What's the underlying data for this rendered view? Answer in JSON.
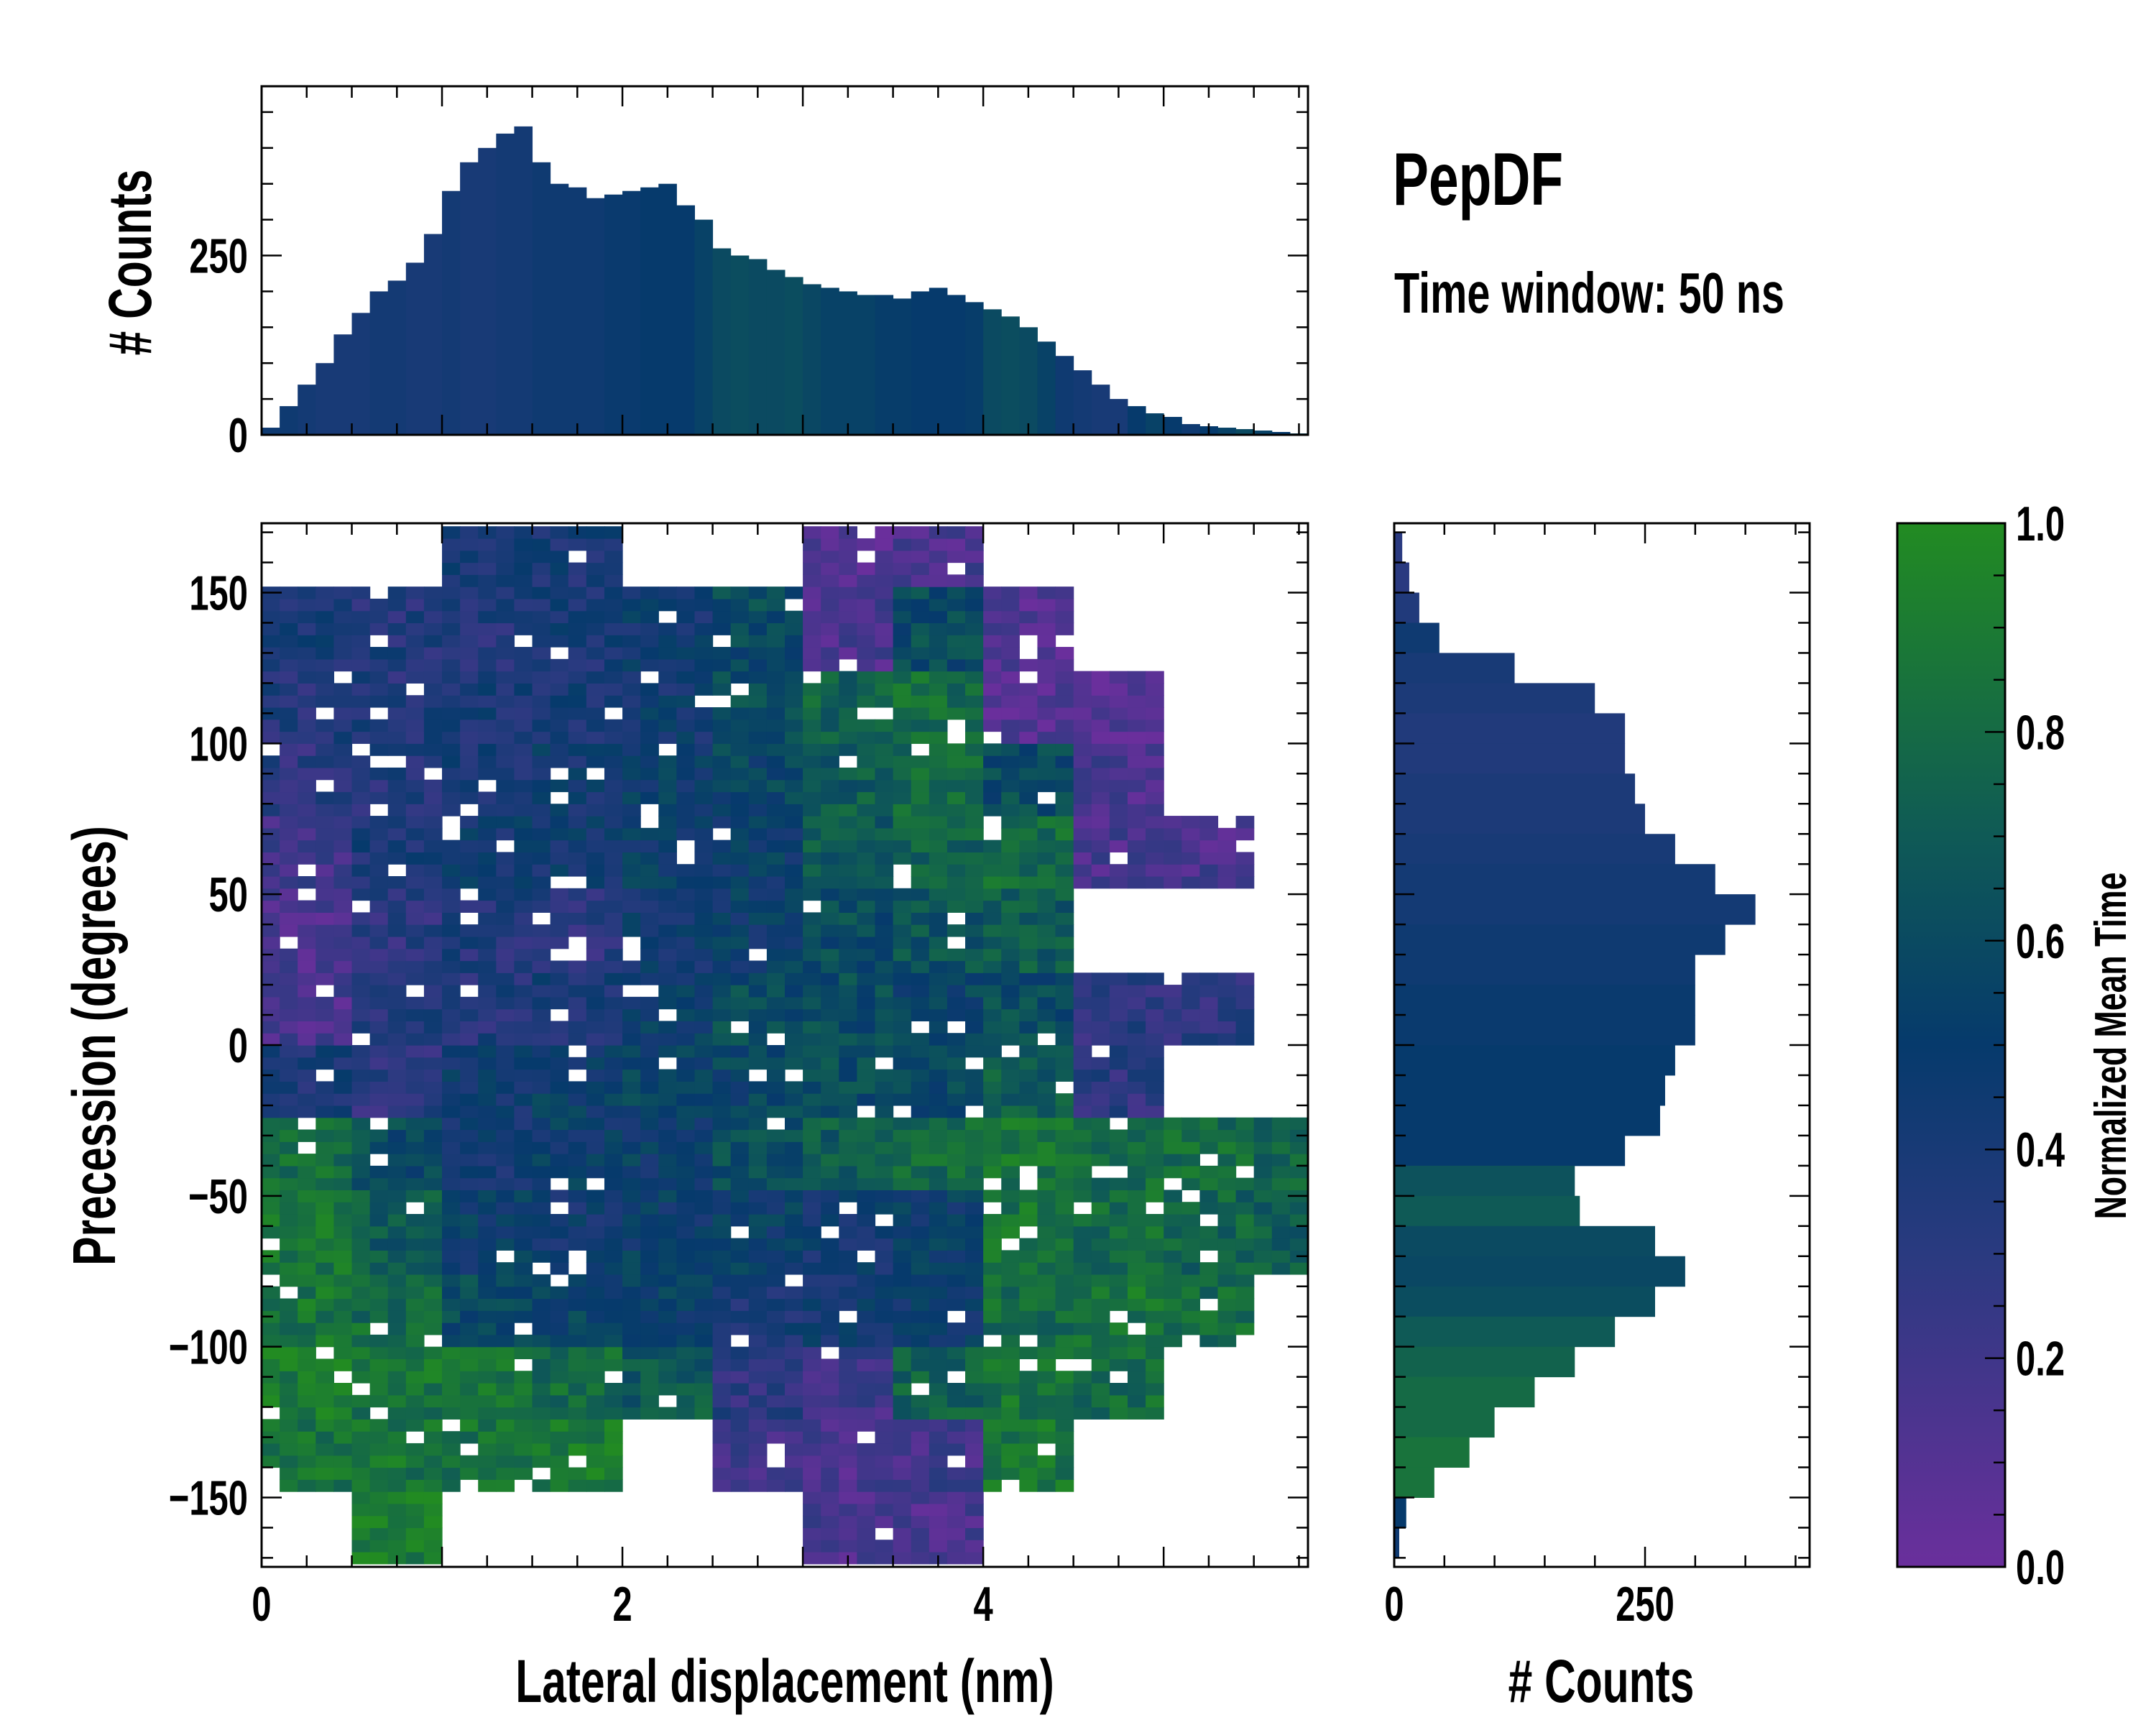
{
  "title": "PepDF",
  "subtitle": "Time window: 50 ns",
  "colormap": {
    "label": "Normalized Mean Time",
    "stops": [
      [
        0.0,
        "#6a2f9c"
      ],
      [
        0.3,
        "#2a3a80"
      ],
      [
        0.5,
        "#063a6c"
      ],
      [
        0.7,
        "#0f5a56"
      ],
      [
        1.0,
        "#228b22"
      ]
    ],
    "range": [
      0,
      1
    ],
    "ticks": [
      0.0,
      0.2,
      0.4,
      0.6,
      0.8,
      1.0
    ],
    "tick_labels": [
      "0.0",
      "0.2",
      "0.4",
      "0.6",
      "0.8",
      "1.0"
    ]
  },
  "chart_data": [
    {
      "id": "top-histogram",
      "type": "bar",
      "ylabel": "# Counts",
      "xlim": [
        0,
        5.8
      ],
      "ylim": [
        0,
        486
      ],
      "yticks": [
        0,
        250
      ],
      "ytick_labels": [
        "0",
        "250"
      ],
      "bin_width": 0.1,
      "x_start": 0,
      "values": [
        10,
        40,
        70,
        100,
        140,
        170,
        200,
        215,
        240,
        280,
        340,
        380,
        400,
        420,
        430,
        380,
        350,
        345,
        330,
        335,
        340,
        345,
        350,
        320,
        300,
        260,
        250,
        245,
        230,
        220,
        210,
        205,
        200,
        195,
        195,
        190,
        200,
        205,
        195,
        185,
        175,
        165,
        150,
        130,
        110,
        90,
        70,
        50,
        40,
        30,
        25,
        15,
        12,
        10,
        8,
        6,
        4,
        2
      ],
      "mean_time": [
        0.45,
        0.45,
        0.42,
        0.4,
        0.4,
        0.4,
        0.42,
        0.42,
        0.4,
        0.4,
        0.42,
        0.4,
        0.4,
        0.42,
        0.42,
        0.45,
        0.45,
        0.45,
        0.45,
        0.48,
        0.48,
        0.5,
        0.5,
        0.5,
        0.55,
        0.6,
        0.62,
        0.6,
        0.6,
        0.62,
        0.58,
        0.55,
        0.55,
        0.55,
        0.52,
        0.52,
        0.5,
        0.5,
        0.5,
        0.52,
        0.6,
        0.62,
        0.6,
        0.55,
        0.45,
        0.42,
        0.4,
        0.4,
        0.5,
        0.55,
        0.5,
        0.45,
        0.5,
        0.55,
        0.6,
        0.55,
        0.5,
        0.6
      ]
    },
    {
      "id": "joint-heatmap",
      "type": "heatmap",
      "xlabel": "Lateral displacement (nm)",
      "ylabel": "Precession (degrees)",
      "xlim": [
        0,
        5.8
      ],
      "ylim": [
        -173,
        173
      ],
      "xticks": [
        0,
        2,
        4
      ],
      "xtick_labels": [
        "0",
        "2",
        "4"
      ],
      "yticks": [
        -150,
        -100,
        -50,
        0,
        50,
        100,
        150
      ],
      "ytick_labels": [
        "−150",
        "−100",
        "−50",
        "0",
        "50",
        "100",
        "150"
      ],
      "grid_x_edges_step": 0.5,
      "grid_y_top": 175,
      "grid_y_step": 25,
      "mean_time_grid": [
        [
          null,
          null,
          0.4,
          0.4,
          null,
          null,
          0.1,
          0.15,
          null,
          null,
          null,
          null
        ],
        [
          0.4,
          0.35,
          0.35,
          0.4,
          0.45,
          0.6,
          0.15,
          0.6,
          0.1,
          null,
          null,
          null
        ],
        [
          0.35,
          0.35,
          0.4,
          0.4,
          0.45,
          0.6,
          0.75,
          0.8,
          0.1,
          0.1,
          null,
          null
        ],
        [
          0.3,
          0.35,
          0.4,
          0.45,
          0.5,
          0.55,
          0.7,
          0.8,
          0.6,
          0.15,
          null,
          null
        ],
        [
          0.2,
          0.4,
          0.45,
          0.45,
          0.5,
          0.5,
          0.7,
          0.75,
          0.8,
          0.15,
          0.15,
          null
        ],
        [
          0.15,
          0.3,
          0.35,
          0.3,
          0.45,
          0.5,
          0.6,
          0.65,
          0.7,
          null,
          null,
          null
        ],
        [
          0.15,
          0.35,
          0.35,
          0.4,
          0.5,
          0.6,
          0.6,
          0.55,
          0.6,
          0.3,
          0.3,
          null
        ],
        [
          0.4,
          0.3,
          0.45,
          0.5,
          0.55,
          0.55,
          0.6,
          0.6,
          0.7,
          0.3,
          null,
          null
        ],
        [
          0.8,
          0.6,
          0.45,
          0.5,
          0.5,
          0.6,
          0.7,
          0.8,
          0.85,
          0.8,
          0.8,
          0.75
        ],
        [
          0.85,
          0.7,
          0.5,
          0.45,
          0.5,
          0.5,
          0.45,
          0.5,
          0.85,
          0.8,
          0.75,
          0.7
        ],
        [
          0.85,
          0.8,
          0.6,
          0.55,
          0.5,
          0.4,
          0.45,
          0.5,
          0.8,
          0.85,
          0.8,
          null
        ],
        [
          0.9,
          0.85,
          0.85,
          0.8,
          0.7,
          0.3,
          0.2,
          0.75,
          0.85,
          0.8,
          null,
          null
        ],
        [
          0.85,
          0.85,
          0.85,
          0.9,
          null,
          0.2,
          0.15,
          0.2,
          0.85,
          null,
          null,
          null
        ],
        [
          null,
          0.9,
          null,
          null,
          null,
          null,
          0.15,
          0.15,
          null,
          null,
          null,
          null
        ]
      ]
    },
    {
      "id": "right-histogram",
      "type": "bar",
      "orientation": "horizontal",
      "xlabel": "# Counts",
      "xlim": [
        0,
        414
      ],
      "ylim": [
        -173,
        173
      ],
      "xticks": [
        0,
        250
      ],
      "xtick_labels": [
        "0",
        "250"
      ],
      "bin_width": 10,
      "y_top": 170,
      "values": [
        8,
        15,
        25,
        45,
        120,
        200,
        230,
        230,
        240,
        250,
        280,
        320,
        360,
        330,
        300,
        300,
        300,
        280,
        270,
        265,
        230,
        180,
        185,
        260,
        290,
        260,
        220,
        180,
        140,
        100,
        75,
        40,
        12,
        5
      ],
      "mean_time": [
        0.3,
        0.3,
        0.35,
        0.45,
        0.4,
        0.38,
        0.35,
        0.35,
        0.38,
        0.38,
        0.4,
        0.42,
        0.42,
        0.45,
        0.45,
        0.48,
        0.48,
        0.5,
        0.5,
        0.5,
        0.5,
        0.65,
        0.7,
        0.6,
        0.58,
        0.62,
        0.7,
        0.75,
        0.8,
        0.8,
        0.85,
        0.85,
        0.5,
        0.45
      ]
    }
  ]
}
